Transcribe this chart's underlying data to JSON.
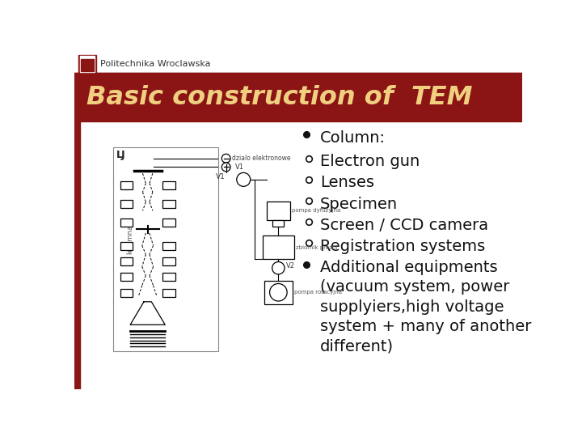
{
  "title": "Basic construction of  TEM",
  "title_color": "#F0D080",
  "header_bg": "#8B1515",
  "slide_bg": "#FFFFFF",
  "left_bar_color": "#8B1515",
  "logo_text": "Politechnika Wroclawska",
  "bullet_items": [
    {
      "level": 0,
      "text": "Column:"
    },
    {
      "level": 1,
      "text": "Electron gun"
    },
    {
      "level": 1,
      "text": "Lenses"
    },
    {
      "level": 1,
      "text": "Specimen"
    },
    {
      "level": 1,
      "text": "Screen / CCD camera"
    },
    {
      "level": 1,
      "text": "Registration systems"
    },
    {
      "level": 0,
      "text": "Additional equipments\n(vacuum system, power\nsupplyiers,high voltage\nsystem + many of another\ndifferent)"
    }
  ],
  "text_color": "#111111",
  "font_size_bullet": 14,
  "font_size_title": 23
}
